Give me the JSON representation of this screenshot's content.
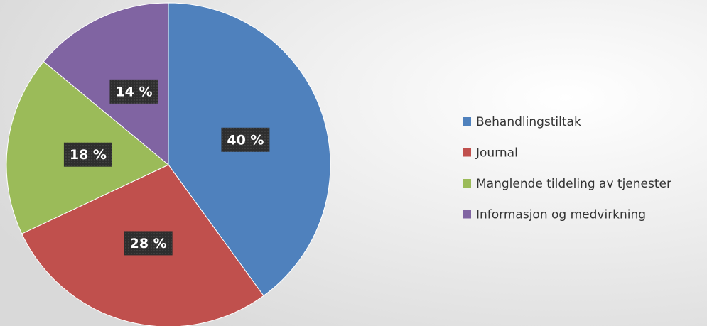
{
  "chart_data": {
    "type": "pie",
    "categories": [
      "Behandlingstiltak",
      "Journal",
      "Manglende tildeling av tjenester",
      "Informasjon og medvirkning"
    ],
    "values": [
      40,
      28,
      18,
      14
    ],
    "value_labels": [
      "40 %",
      "28 %",
      "18 %",
      "14 %"
    ],
    "colors": [
      "#4f81bd",
      "#c0504d",
      "#9bbb59",
      "#8064a2"
    ],
    "legend": "right"
  }
}
